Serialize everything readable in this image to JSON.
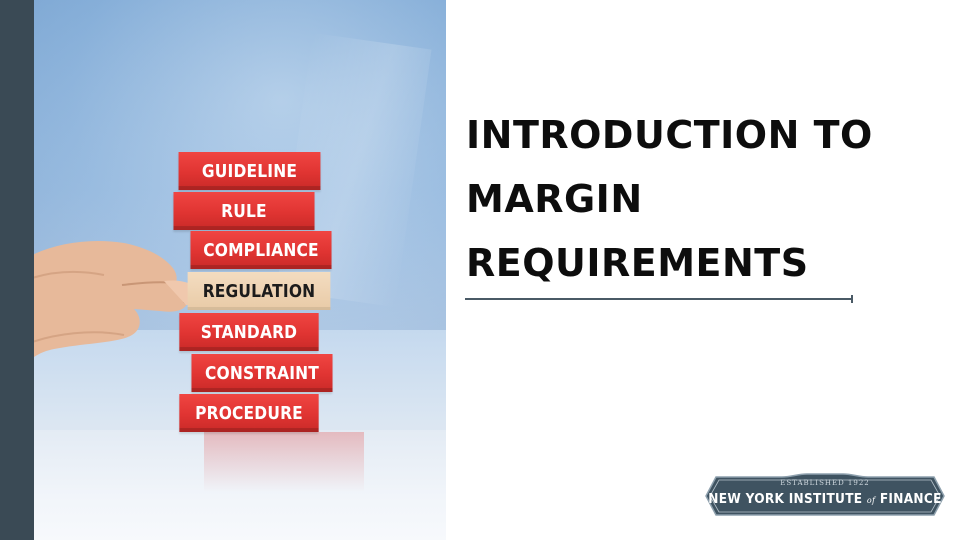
{
  "slide": {
    "title_lines": [
      "INTRODUCTION TO",
      "MARGIN",
      "REQUIREMENTS"
    ]
  },
  "photo": {
    "blocks": [
      {
        "label": "GUIDELINE"
      },
      {
        "label": "RULE"
      },
      {
        "label": "COMPLIANCE"
      },
      {
        "label": "REGULATION"
      },
      {
        "label": "STANDARD"
      },
      {
        "label": "CONSTRAINT"
      },
      {
        "label": "PROCEDURE"
      }
    ]
  },
  "logo": {
    "established": "ESTABLISHED 1922",
    "name_part1": "NEW YORK INSTITUTE",
    "name_of": "of",
    "name_part2": "FINANCE"
  },
  "colors": {
    "side_bar": "#3a4a55",
    "block_red": "#e03432",
    "highlight_block": "#e9cba7",
    "logo_bg": "#3f5361",
    "title_text": "#0d0d0d"
  }
}
